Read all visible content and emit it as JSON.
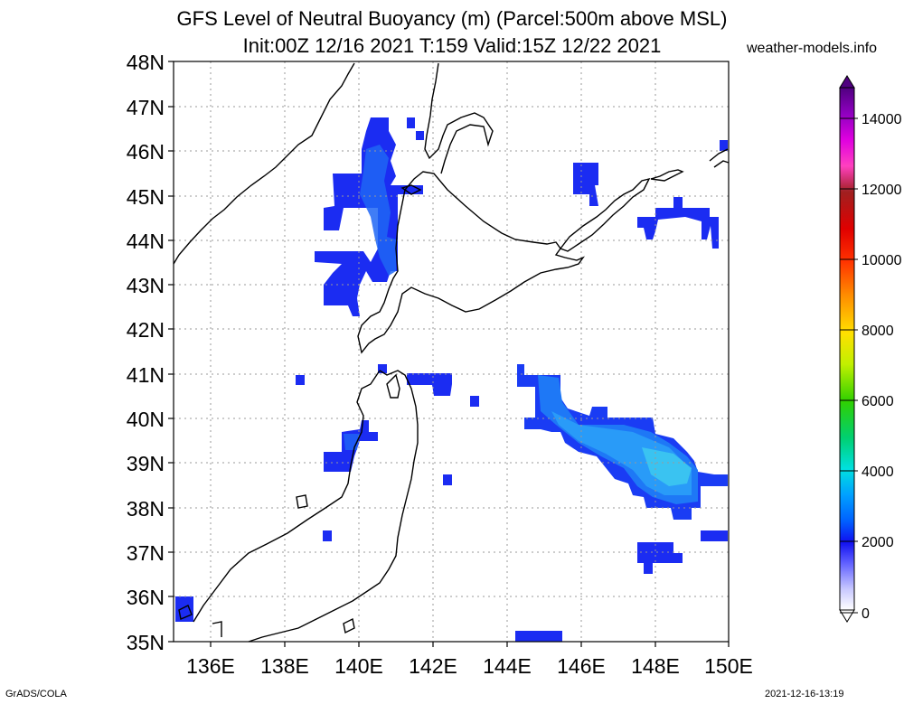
{
  "header": {
    "title_line1": "GFS Level of Neutral Buoyancy (m) (Parcel:500m above MSL)",
    "title_line2": "Init:00Z 12/16 2021 T:159 Valid:15Z 12/22 2021",
    "credit": "weather-models.info"
  },
  "map": {
    "lat_labels": [
      "48N",
      "47N",
      "46N",
      "45N",
      "44N",
      "43N",
      "42N",
      "41N",
      "40N",
      "39N",
      "38N",
      "37N",
      "36N",
      "35N"
    ],
    "lon_labels": [
      "136E",
      "138E",
      "140E",
      "142E",
      "144E",
      "146E",
      "148E",
      "150E"
    ],
    "gridlines": "dotted",
    "field": "Level of Neutral Buoyancy (m)"
  },
  "colorbar": {
    "labels": [
      "0",
      "2000",
      "4000",
      "6000",
      "8000",
      "10000",
      "12000",
      "14000"
    ],
    "colors": [
      "#ffffff",
      "#d8d8ff",
      "#b0b0ff",
      "#8080ff",
      "#4040ff",
      "#1010f0",
      "#0040ff",
      "#0080ff",
      "#00b0ff",
      "#00e0e0",
      "#00e0a0",
      "#00d050",
      "#40e000",
      "#a0f000",
      "#f0f000",
      "#ffc000",
      "#ff8000",
      "#ff4000",
      "#f00000",
      "#c00000",
      "#a02020",
      "#ff00ff",
      "#d000d0",
      "#9000b0",
      "#600090"
    ]
  },
  "footer": {
    "left": "GrADS/COLA",
    "right": "2021-12-16-13:19"
  }
}
